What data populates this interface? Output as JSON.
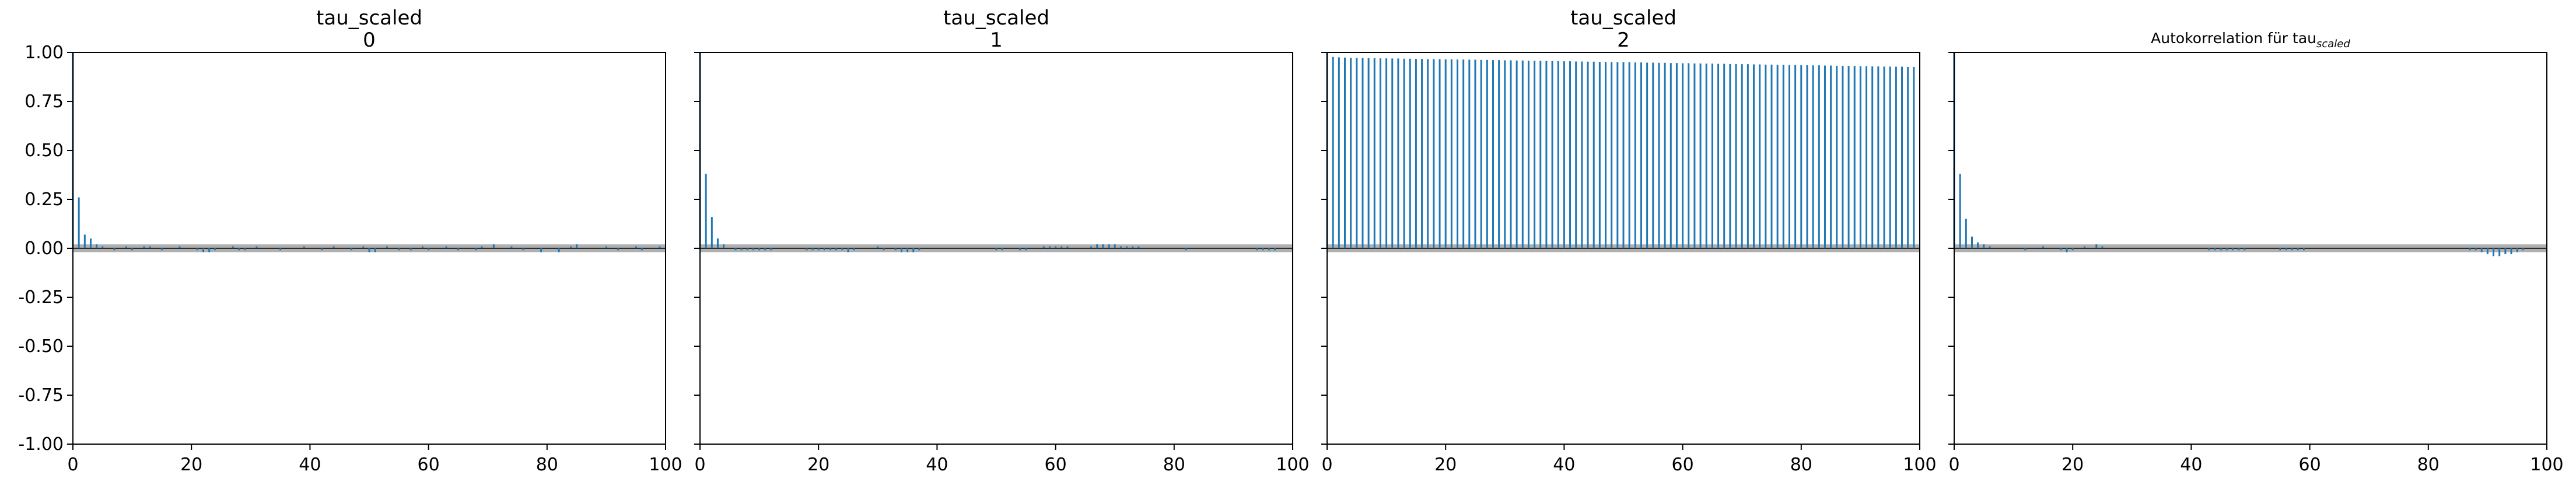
{
  "chart_data": [
    {
      "type": "bar",
      "title": "tau_scaled",
      "subtitle": "0",
      "xlim": [
        0,
        100
      ],
      "ylim": [
        -1.0,
        1.0
      ],
      "xticks": [
        0,
        20,
        40,
        60,
        80,
        100
      ],
      "yticks": [
        "1.00",
        "0.75",
        "0.50",
        "0.25",
        "0.00",
        "-0.25",
        "-0.50",
        "-0.75",
        "-1.00"
      ],
      "show_yticklabels": true,
      "confidence_band": 0.02,
      "lags": [
        0,
        1,
        2,
        3,
        4,
        5,
        6,
        7,
        8,
        9,
        10,
        11,
        12,
        13,
        14,
        15,
        16,
        17,
        18,
        19,
        20,
        21,
        22,
        23,
        24,
        25,
        26,
        27,
        28,
        29,
        30,
        31,
        32,
        33,
        34,
        35,
        36,
        37,
        38,
        39,
        40,
        41,
        42,
        43,
        44,
        45,
        46,
        47,
        48,
        49,
        50,
        51,
        52,
        53,
        54,
        55,
        56,
        57,
        58,
        59,
        60,
        61,
        62,
        63,
        64,
        65,
        66,
        67,
        68,
        69,
        70,
        71,
        72,
        73,
        74,
        75,
        76,
        77,
        78,
        79,
        80,
        81,
        82,
        83,
        84,
        85,
        86,
        87,
        88,
        89,
        90,
        91,
        92,
        93,
        94,
        95,
        96,
        97,
        98,
        99
      ],
      "values": [
        1.0,
        0.26,
        0.07,
        0.05,
        0.02,
        0.01,
        0.0,
        -0.01,
        0.0,
        0.01,
        -0.01,
        0.0,
        0.01,
        0.01,
        0.0,
        -0.01,
        0.0,
        0.0,
        0.01,
        0.0,
        0.0,
        -0.01,
        -0.02,
        -0.02,
        -0.01,
        0.0,
        0.0,
        0.01,
        -0.01,
        -0.01,
        0.0,
        0.01,
        0.0,
        0.0,
        0.0,
        -0.01,
        0.0,
        0.0,
        0.0,
        0.01,
        0.0,
        0.0,
        -0.01,
        0.0,
        0.01,
        0.0,
        0.0,
        -0.01,
        0.0,
        0.01,
        -0.02,
        -0.02,
        0.0,
        0.01,
        0.0,
        -0.01,
        0.0,
        -0.01,
        0.0,
        0.01,
        -0.01,
        0.0,
        0.0,
        0.01,
        0.0,
        -0.01,
        0.0,
        0.0,
        -0.01,
        0.01,
        0.0,
        0.02,
        0.0,
        0.0,
        0.01,
        0.0,
        -0.01,
        0.0,
        0.0,
        -0.02,
        0.0,
        0.0,
        -0.02,
        0.0,
        0.01,
        0.02,
        0.0,
        0.0,
        0.0,
        0.0,
        0.01,
        0.0,
        -0.01,
        0.0,
        0.0,
        0.01,
        -0.01,
        0.0,
        0.0,
        0.01
      ],
      "color": "#1f77b4"
    },
    {
      "type": "bar",
      "title": "tau_scaled",
      "subtitle": "1",
      "xlim": [
        0,
        100
      ],
      "ylim": [
        -1.0,
        1.0
      ],
      "xticks": [
        0,
        20,
        40,
        60,
        80,
        100
      ],
      "show_yticklabels": false,
      "confidence_band": 0.02,
      "lags": [
        0,
        1,
        2,
        3,
        4,
        5,
        6,
        7,
        8,
        9,
        10,
        11,
        12,
        13,
        14,
        15,
        16,
        17,
        18,
        19,
        20,
        21,
        22,
        23,
        24,
        25,
        26,
        27,
        28,
        29,
        30,
        31,
        32,
        33,
        34,
        35,
        36,
        37,
        38,
        39,
        40,
        41,
        42,
        43,
        44,
        45,
        46,
        47,
        48,
        49,
        50,
        51,
        52,
        53,
        54,
        55,
        56,
        57,
        58,
        59,
        60,
        61,
        62,
        63,
        64,
        65,
        66,
        67,
        68,
        69,
        70,
        71,
        72,
        73,
        74,
        75,
        76,
        77,
        78,
        79,
        80,
        81,
        82,
        83,
        84,
        85,
        86,
        87,
        88,
        89,
        90,
        91,
        92,
        93,
        94,
        95,
        96,
        97,
        98,
        99
      ],
      "values": [
        1.0,
        0.38,
        0.16,
        0.05,
        0.02,
        0.0,
        -0.01,
        -0.01,
        -0.01,
        -0.01,
        -0.01,
        -0.01,
        -0.01,
        0.0,
        0.0,
        0.0,
        0.0,
        0.0,
        -0.01,
        -0.01,
        -0.01,
        -0.01,
        -0.01,
        -0.01,
        -0.01,
        -0.02,
        -0.01,
        0.0,
        0.0,
        0.0,
        0.01,
        -0.01,
        0.0,
        -0.01,
        -0.02,
        -0.02,
        -0.02,
        -0.01,
        0.0,
        0.0,
        0.0,
        0.0,
        0.0,
        0.0,
        0.0,
        0.0,
        0.0,
        0.0,
        0.0,
        0.0,
        -0.01,
        -0.01,
        0.0,
        0.0,
        -0.01,
        -0.01,
        0.0,
        0.0,
        0.01,
        0.01,
        0.01,
        0.01,
        0.01,
        0.0,
        0.0,
        0.0,
        0.01,
        0.02,
        0.02,
        0.02,
        0.02,
        0.01,
        0.01,
        0.01,
        0.01,
        0.0,
        0.0,
        0.0,
        0.0,
        0.0,
        0.0,
        0.0,
        -0.01,
        0.0,
        0.0,
        0.0,
        0.0,
        0.0,
        0.0,
        0.0,
        0.0,
        0.0,
        0.0,
        0.0,
        -0.01,
        -0.01,
        -0.01,
        -0.01,
        0.0,
        0.0
      ],
      "color": "#1f77b4"
    },
    {
      "type": "bar",
      "title": "tau_scaled",
      "subtitle": "2",
      "xlim": [
        0,
        100
      ],
      "ylim": [
        -1.0,
        1.0
      ],
      "xticks": [
        0,
        20,
        40,
        60,
        80,
        100
      ],
      "show_yticklabels": false,
      "confidence_band": 0.02,
      "lags": [
        0,
        1,
        2,
        3,
        4,
        5,
        6,
        7,
        8,
        9,
        10,
        11,
        12,
        13,
        14,
        15,
        16,
        17,
        18,
        19,
        20,
        21,
        22,
        23,
        24,
        25,
        26,
        27,
        28,
        29,
        30,
        31,
        32,
        33,
        34,
        35,
        36,
        37,
        38,
        39,
        40,
        41,
        42,
        43,
        44,
        45,
        46,
        47,
        48,
        49,
        50,
        51,
        52,
        53,
        54,
        55,
        56,
        57,
        58,
        59,
        60,
        61,
        62,
        63,
        64,
        65,
        66,
        67,
        68,
        69,
        70,
        71,
        72,
        73,
        74,
        75,
        76,
        77,
        78,
        79,
        80,
        81,
        82,
        83,
        84,
        85,
        86,
        87,
        88,
        89,
        90,
        91,
        92,
        93,
        94,
        95,
        96,
        97,
        98,
        99
      ],
      "values": [
        1.0,
        0.977,
        0.975,
        0.974,
        0.973,
        0.972,
        0.972,
        0.971,
        0.971,
        0.97,
        0.97,
        0.969,
        0.969,
        0.968,
        0.968,
        0.967,
        0.967,
        0.966,
        0.966,
        0.966,
        0.965,
        0.965,
        0.964,
        0.964,
        0.963,
        0.963,
        0.962,
        0.962,
        0.961,
        0.961,
        0.96,
        0.96,
        0.959,
        0.959,
        0.958,
        0.958,
        0.957,
        0.957,
        0.956,
        0.956,
        0.955,
        0.955,
        0.954,
        0.954,
        0.953,
        0.953,
        0.952,
        0.952,
        0.951,
        0.951,
        0.95,
        0.95,
        0.949,
        0.949,
        0.948,
        0.948,
        0.947,
        0.947,
        0.946,
        0.946,
        0.945,
        0.945,
        0.944,
        0.944,
        0.943,
        0.943,
        0.942,
        0.942,
        0.941,
        0.941,
        0.94,
        0.94,
        0.939,
        0.939,
        0.938,
        0.938,
        0.937,
        0.937,
        0.936,
        0.936,
        0.935,
        0.935,
        0.934,
        0.934,
        0.933,
        0.933,
        0.932,
        0.932,
        0.931,
        0.931,
        0.93,
        0.93,
        0.929,
        0.929,
        0.928,
        0.928,
        0.927,
        0.927,
        0.926,
        0.926
      ],
      "color": "#1f77b4"
    },
    {
      "type": "bar",
      "title": "Autokorrelation für tau",
      "title_subscript": "scaled",
      "xlim": [
        0,
        100
      ],
      "ylim": [
        -1.0,
        1.0
      ],
      "xticks": [
        0,
        20,
        40,
        60,
        80,
        100
      ],
      "show_yticklabels": false,
      "confidence_band": 0.02,
      "lags": [
        0,
        1,
        2,
        3,
        4,
        5,
        6,
        7,
        8,
        9,
        10,
        11,
        12,
        13,
        14,
        15,
        16,
        17,
        18,
        19,
        20,
        21,
        22,
        23,
        24,
        25,
        26,
        27,
        28,
        29,
        30,
        31,
        32,
        33,
        34,
        35,
        36,
        37,
        38,
        39,
        40,
        41,
        42,
        43,
        44,
        45,
        46,
        47,
        48,
        49,
        50,
        51,
        52,
        53,
        54,
        55,
        56,
        57,
        58,
        59,
        60,
        61,
        62,
        63,
        64,
        65,
        66,
        67,
        68,
        69,
        70,
        71,
        72,
        73,
        74,
        75,
        76,
        77,
        78,
        79,
        80,
        81,
        82,
        83,
        84,
        85,
        86,
        87,
        88,
        89,
        90,
        91,
        92,
        93,
        94,
        95,
        96,
        97,
        98,
        99
      ],
      "values": [
        1.0,
        0.38,
        0.15,
        0.06,
        0.03,
        0.02,
        0.01,
        0.0,
        0.0,
        0.0,
        0.0,
        0.0,
        -0.01,
        0.0,
        0.0,
        0.01,
        0.0,
        0.0,
        -0.01,
        -0.02,
        -0.01,
        0.0,
        0.01,
        0.0,
        0.02,
        0.01,
        0.0,
        0.0,
        0.0,
        0.0,
        0.0,
        0.0,
        0.0,
        0.0,
        0.0,
        0.0,
        0.0,
        0.0,
        0.0,
        0.0,
        0.0,
        0.0,
        0.0,
        -0.01,
        -0.01,
        -0.01,
        -0.01,
        -0.01,
        -0.01,
        -0.01,
        0.0,
        0.0,
        0.0,
        0.0,
        0.0,
        -0.01,
        -0.01,
        -0.01,
        -0.01,
        -0.01,
        0.0,
        0.0,
        0.0,
        0.0,
        0.0,
        0.0,
        0.0,
        0.0,
        0.0,
        0.0,
        0.0,
        0.0,
        0.0,
        0.0,
        0.0,
        0.0,
        0.0,
        0.0,
        0.0,
        0.0,
        0.0,
        0.0,
        0.0,
        0.0,
        0.0,
        0.0,
        0.0,
        -0.01,
        -0.01,
        -0.02,
        -0.03,
        -0.04,
        -0.04,
        -0.03,
        -0.03,
        -0.02,
        -0.01,
        0.0,
        0.0,
        0.0
      ],
      "color": "#1f77b4"
    }
  ]
}
